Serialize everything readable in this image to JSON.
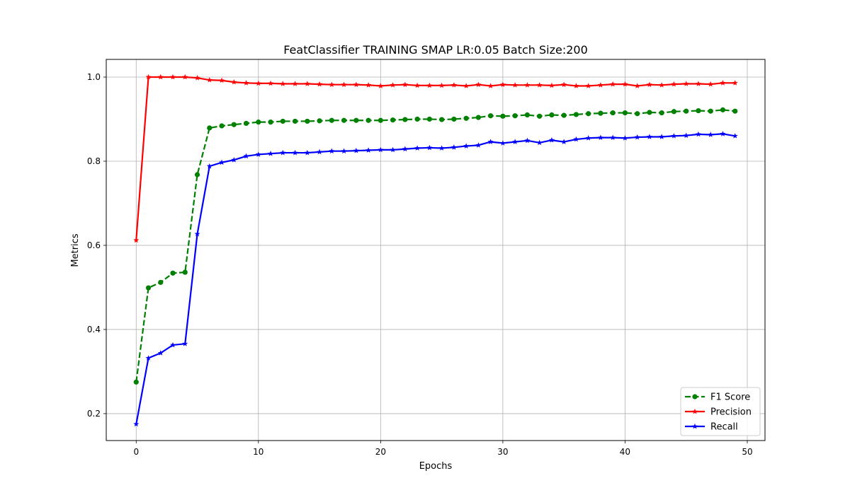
{
  "chart_data": {
    "type": "line",
    "title": "FeatClassifier TRAINING SMAP LR:0.05 Batch Size:200",
    "xlabel": "Epochs",
    "ylabel": "Metrics",
    "xlim": [
      -2.45,
      51.45
    ],
    "ylim": [
      0.136,
      1.042
    ],
    "xticks": [
      0,
      10,
      20,
      30,
      40,
      50
    ],
    "yticks": [
      0.2,
      0.4,
      0.6,
      0.8,
      1.0
    ],
    "xtick_labels": [
      "0",
      "10",
      "20",
      "30",
      "40",
      "50"
    ],
    "ytick_labels": [
      "0.2",
      "0.4",
      "0.6",
      "0.8",
      "1.0"
    ],
    "grid": true,
    "legend_position": "lower-right",
    "x": [
      0,
      1,
      2,
      3,
      4,
      5,
      6,
      7,
      8,
      9,
      10,
      11,
      12,
      13,
      14,
      15,
      16,
      17,
      18,
      19,
      20,
      21,
      22,
      23,
      24,
      25,
      26,
      27,
      28,
      29,
      30,
      31,
      32,
      33,
      34,
      35,
      36,
      37,
      38,
      39,
      40,
      41,
      42,
      43,
      44,
      45,
      46,
      47,
      48,
      49
    ],
    "series": [
      {
        "name": "F1 Score",
        "color": "#008000",
        "marker": "circle",
        "linestyle": "dashed",
        "values": [
          0.275,
          0.499,
          0.512,
          0.534,
          0.536,
          0.768,
          0.879,
          0.884,
          0.887,
          0.89,
          0.893,
          0.893,
          0.895,
          0.895,
          0.895,
          0.896,
          0.897,
          0.897,
          0.897,
          0.897,
          0.897,
          0.898,
          0.899,
          0.9,
          0.9,
          0.899,
          0.9,
          0.902,
          0.904,
          0.908,
          0.907,
          0.908,
          0.91,
          0.907,
          0.91,
          0.909,
          0.911,
          0.913,
          0.914,
          0.915,
          0.915,
          0.913,
          0.916,
          0.915,
          0.918,
          0.919,
          0.92,
          0.919,
          0.922,
          0.919
        ]
      },
      {
        "name": "Precision",
        "color": "#ff0000",
        "marker": "star",
        "linestyle": "solid",
        "values": [
          0.612,
          1.0,
          1.0,
          1.0,
          1.0,
          0.998,
          0.993,
          0.992,
          0.988,
          0.986,
          0.985,
          0.985,
          0.984,
          0.984,
          0.984,
          0.983,
          0.982,
          0.982,
          0.982,
          0.981,
          0.979,
          0.981,
          0.982,
          0.98,
          0.98,
          0.98,
          0.981,
          0.979,
          0.982,
          0.979,
          0.982,
          0.981,
          0.981,
          0.981,
          0.98,
          0.982,
          0.979,
          0.979,
          0.981,
          0.983,
          0.983,
          0.979,
          0.982,
          0.981,
          0.983,
          0.984,
          0.984,
          0.983,
          0.986,
          0.986
        ]
      },
      {
        "name": "Recall",
        "color": "#0000ff",
        "marker": "star",
        "linestyle": "solid",
        "values": [
          0.175,
          0.332,
          0.344,
          0.363,
          0.366,
          0.627,
          0.788,
          0.797,
          0.803,
          0.812,
          0.816,
          0.818,
          0.82,
          0.82,
          0.82,
          0.822,
          0.824,
          0.824,
          0.825,
          0.826,
          0.827,
          0.827,
          0.829,
          0.831,
          0.832,
          0.831,
          0.833,
          0.836,
          0.838,
          0.846,
          0.843,
          0.846,
          0.849,
          0.844,
          0.85,
          0.846,
          0.852,
          0.855,
          0.856,
          0.856,
          0.855,
          0.857,
          0.858,
          0.858,
          0.86,
          0.861,
          0.864,
          0.863,
          0.865,
          0.86
        ]
      }
    ]
  }
}
